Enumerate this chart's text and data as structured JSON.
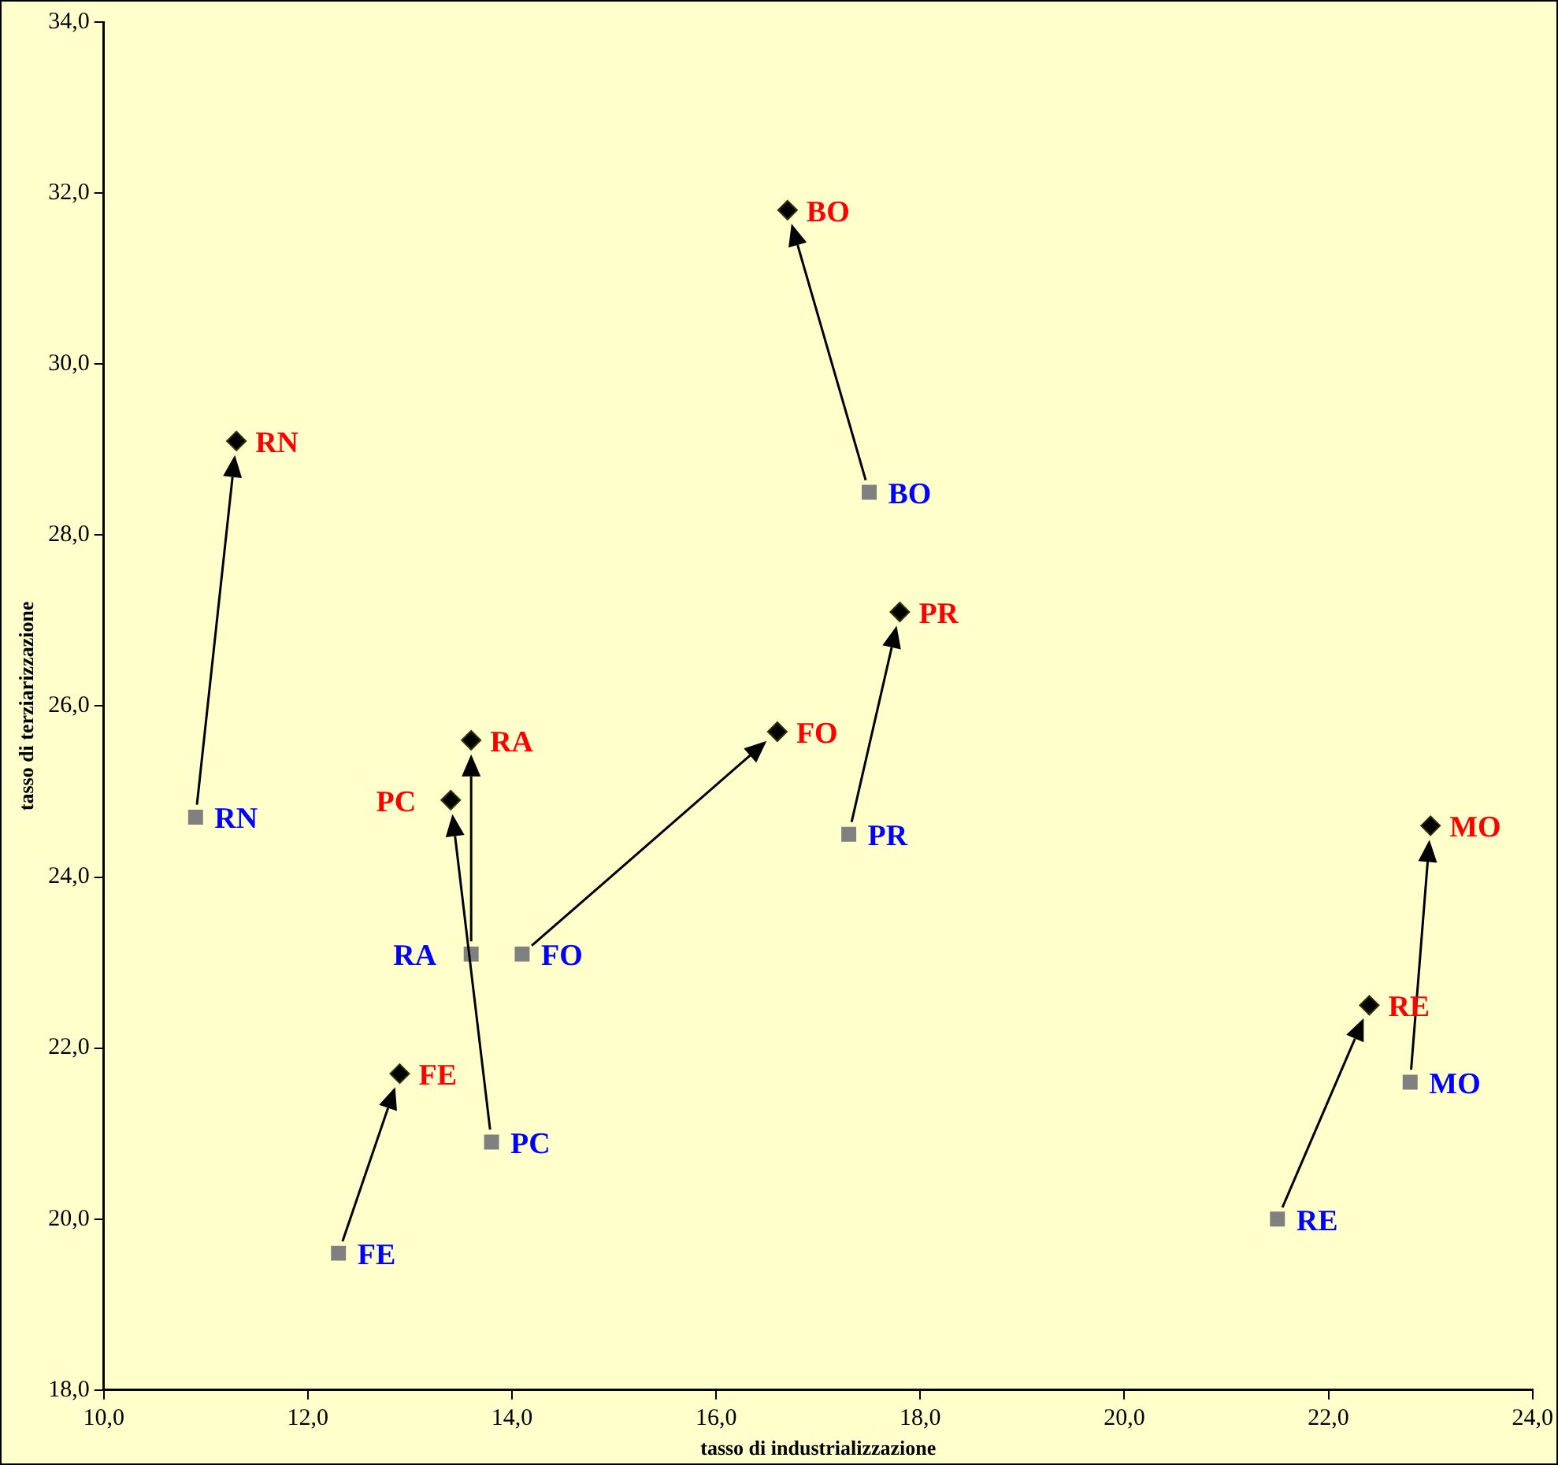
{
  "chart_data": {
    "type": "scatter",
    "xlabel": "tasso di industrializzazione",
    "ylabel": "tasso di terziarizzazione",
    "xlim": [
      10,
      24
    ],
    "ylim": [
      18,
      34
    ],
    "xticks": [
      {
        "value": 10,
        "label": "10,0"
      },
      {
        "value": 12,
        "label": "12,0"
      },
      {
        "value": 14,
        "label": "14,0"
      },
      {
        "value": 16,
        "label": "16,0"
      },
      {
        "value": 18,
        "label": "18,0"
      },
      {
        "value": 20,
        "label": "20,0"
      },
      {
        "value": 22,
        "label": "22,0"
      },
      {
        "value": 24,
        "label": "24,0"
      }
    ],
    "yticks": [
      {
        "value": 18,
        "label": "18,0"
      },
      {
        "value": 20,
        "label": "20,0"
      },
      {
        "value": 22,
        "label": "22,0"
      },
      {
        "value": 24,
        "label": "24,0"
      },
      {
        "value": 26,
        "label": "26,0"
      },
      {
        "value": 28,
        "label": "28,0"
      },
      {
        "value": 30,
        "label": "30,0"
      },
      {
        "value": 32,
        "label": "32,0"
      },
      {
        "value": 34,
        "label": "34,0"
      }
    ],
    "grid": false,
    "legend": false,
    "series": [
      {
        "color": "#808080",
        "marker": "square",
        "x": [
          10.9,
          17.5,
          17.3,
          14.1,
          13.6,
          13.8,
          12.3,
          21.5,
          22.8
        ],
        "values": [
          24.7,
          28.5,
          24.5,
          23.1,
          23.1,
          20.9,
          19.6,
          20.0,
          21.6
        ],
        "value_labels": [
          "RN",
          "BO",
          "PR",
          "FO",
          "RA",
          "PC",
          "FE",
          "RE",
          "MO"
        ]
      },
      {
        "color": "#000000",
        "marker": "diamond",
        "x": [
          11.3,
          16.7,
          17.8,
          16.6,
          13.6,
          13.4,
          12.9,
          22.4,
          23.0
        ],
        "values": [
          29.1,
          31.8,
          27.1,
          25.7,
          25.6,
          24.9,
          21.7,
          22.5,
          24.6
        ],
        "value_labels": [
          "RN",
          "BO",
          "PR",
          "FO",
          "RA",
          "PC",
          "FE",
          "RE",
          "MO"
        ]
      }
    ]
  }
}
